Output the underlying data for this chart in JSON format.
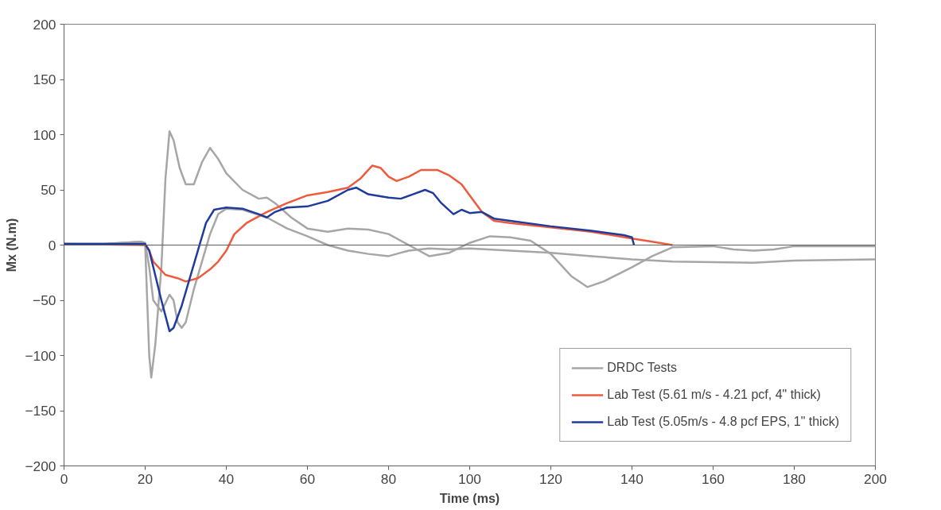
{
  "chart_data": {
    "type": "line",
    "xlabel": "Time (ms)",
    "ylabel": "Mx (N.m)",
    "xlim": [
      0,
      200
    ],
    "ylim": [
      -200,
      200
    ],
    "xticks": [
      0,
      20,
      40,
      60,
      80,
      100,
      120,
      140,
      160,
      180,
      200
    ],
    "yticks": [
      -200,
      -150,
      -100,
      -50,
      0,
      50,
      100,
      150,
      200
    ],
    "grid": false,
    "ref_lines": [
      {
        "axis": "y",
        "value": 0,
        "color": "#606060"
      }
    ],
    "legend": "bottom right",
    "line_style": "solid",
    "marker": "none",
    "series": [
      {
        "name": "DRDC Tests",
        "color": "#a6a6a6",
        "x": [
          0,
          10,
          19,
          20,
          21,
          21.5,
          22.5,
          24,
          25,
          26,
          27,
          28.5,
          30,
          32,
          34,
          36,
          38,
          40,
          44,
          48,
          50,
          52,
          56,
          60,
          65,
          70,
          75,
          80,
          85,
          90,
          95,
          100,
          105,
          110,
          115,
          120,
          125,
          129,
          133,
          140,
          145,
          150,
          160,
          165,
          170,
          175,
          180,
          200
        ],
        "values": [
          1,
          1,
          3,
          0,
          -100,
          -120,
          -90,
          -20,
          60,
          103,
          95,
          70,
          55,
          55,
          75,
          88,
          78,
          65,
          50,
          42,
          43,
          38,
          25,
          15,
          12,
          15,
          14,
          10,
          0,
          -10,
          -7,
          2,
          8,
          7,
          4,
          -8,
          -28,
          -38,
          -33,
          -20,
          -10,
          -2,
          -1,
          -4,
          -5,
          -4,
          -1,
          -1
        ]
      },
      {
        "color": "#a6a6a6",
        "x": [
          0,
          10,
          19,
          20,
          21,
          22,
          24,
          26,
          27,
          28,
          29,
          30,
          32,
          34,
          36,
          38,
          40,
          44,
          50,
          55,
          60,
          65,
          70,
          75,
          80,
          85,
          90,
          95,
          100,
          110,
          120,
          130,
          140,
          150,
          170,
          180,
          200
        ],
        "values": [
          1,
          1,
          3,
          2,
          -20,
          -50,
          -60,
          -45,
          -50,
          -70,
          -75,
          -70,
          -40,
          -15,
          10,
          28,
          33,
          32,
          25,
          15,
          8,
          0,
          -5,
          -8,
          -10,
          -5,
          -3,
          -4,
          -3,
          -5,
          -7,
          -10,
          -13,
          -15,
          -16,
          -14,
          -13
        ]
      },
      {
        "name": "Lab Test (5.61 m/s - 4.21 pcf, 4\" thick)",
        "color": "#f05a3c",
        "x": [
          0,
          20,
          21,
          22,
          25,
          28,
          30,
          33,
          36,
          38,
          40,
          42,
          45,
          50,
          55,
          60,
          65,
          70,
          73,
          76,
          78,
          80,
          82,
          85,
          88,
          92,
          95,
          98,
          100,
          103,
          106,
          110,
          120,
          130,
          140,
          145,
          150
        ],
        "values": [
          1,
          0,
          -5,
          -15,
          -27,
          -30,
          -33,
          -30,
          -22,
          -15,
          -5,
          10,
          20,
          30,
          38,
          45,
          48,
          52,
          60,
          72,
          70,
          62,
          58,
          62,
          68,
          68,
          63,
          55,
          45,
          30,
          22,
          20,
          16,
          12,
          6,
          3,
          0
        ]
      },
      {
        "name": "Lab Test (5.05m/s - 4.8 pcf EPS, 1\" thick)",
        "color": "#1f3c9c",
        "x": [
          0,
          20,
          21,
          22,
          24,
          26,
          27,
          29,
          31,
          33,
          35,
          37,
          40,
          44,
          48,
          50,
          52,
          55,
          60,
          65,
          70,
          72,
          75,
          80,
          83,
          86,
          89,
          91,
          93,
          96,
          98,
          100,
          103,
          106,
          110,
          120,
          130,
          138,
          140,
          140.5
        ],
        "values": [
          1,
          1,
          -5,
          -20,
          -50,
          -78,
          -75,
          -55,
          -30,
          -5,
          20,
          32,
          34,
          33,
          28,
          25,
          30,
          34,
          35,
          40,
          50,
          52,
          46,
          43,
          42,
          46,
          50,
          47,
          38,
          28,
          32,
          29,
          30,
          24,
          22,
          17,
          13,
          9,
          7,
          0
        ]
      }
    ]
  }
}
